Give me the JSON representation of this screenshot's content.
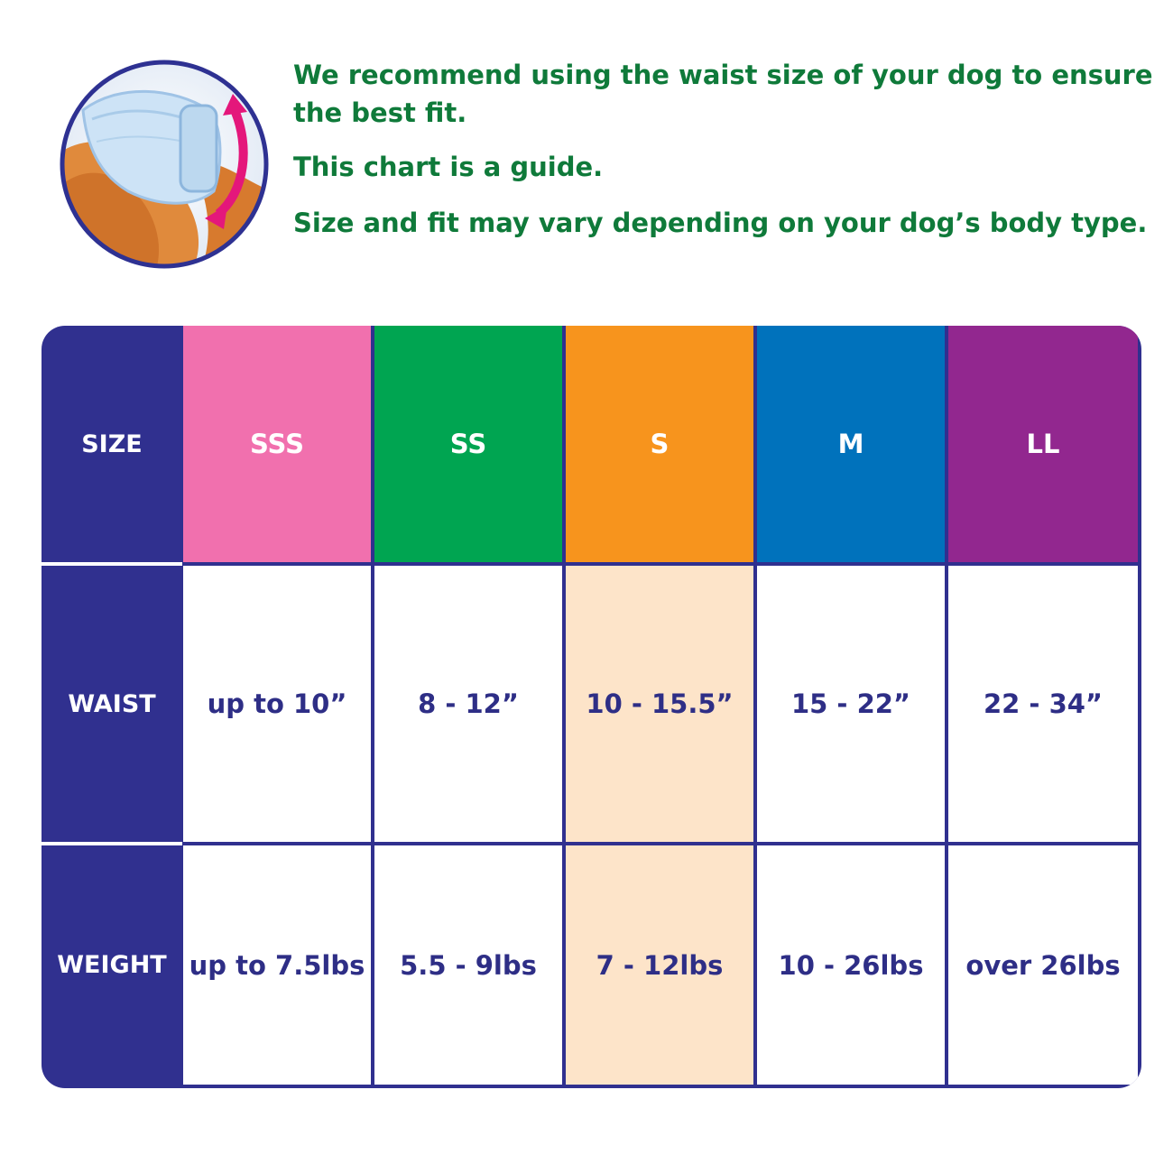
{
  "intro": {
    "line1": "We recommend using the waist size of your dog  to ensure the best fit.",
    "line2": "This chart is a guide.",
    "line3": "Size and fit may vary depending on your dog’s body type."
  },
  "table": {
    "row_labels": {
      "size": "SIZE",
      "waist": "WAIST",
      "weight": "WEIGHT"
    },
    "columns": [
      {
        "size": "SSS",
        "color": "#f170ae",
        "waist": "up to 10”",
        "weight": "up to 7.5lbs"
      },
      {
        "size": "SS",
        "color": "#00a551",
        "waist": "8 - 12”",
        "weight": "5.5 - 9lbs"
      },
      {
        "size": "S",
        "color": "#f7941d",
        "waist": "10 - 15.5”",
        "weight": "7 - 12lbs"
      },
      {
        "size": "M",
        "color": "#0072bc",
        "waist": "15 - 22”",
        "weight": "10 - 26lbs"
      },
      {
        "size": "LL",
        "color": "#92278f",
        "waist": "22 - 34”",
        "weight": "over 26lbs"
      }
    ],
    "highlighted_column": "S",
    "frame_color": "#30308f",
    "highlight_color": "#fde4c9"
  }
}
